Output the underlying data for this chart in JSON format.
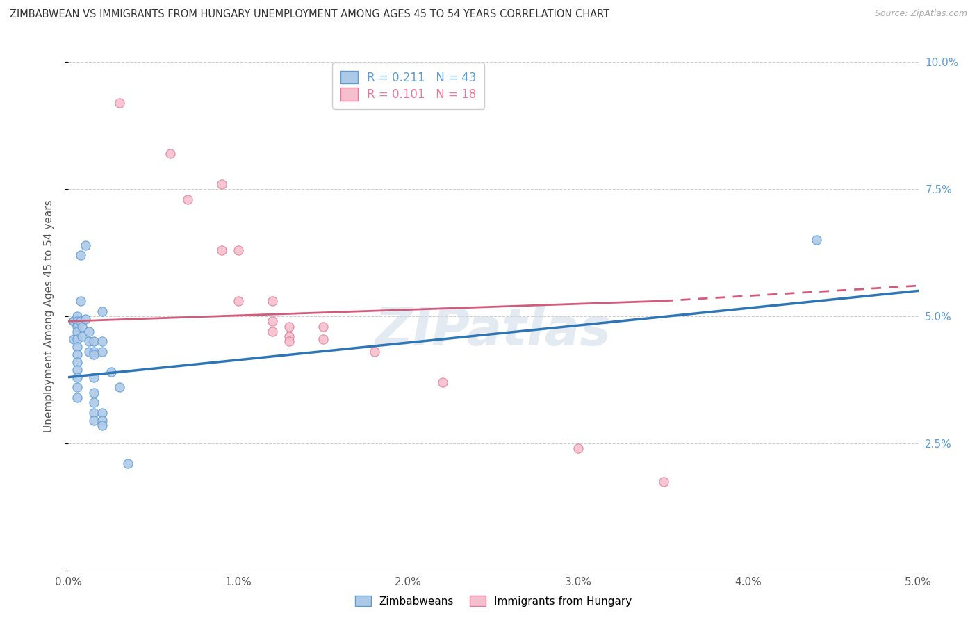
{
  "title": "ZIMBABWEAN VS IMMIGRANTS FROM HUNGARY UNEMPLOYMENT AMONG AGES 45 TO 54 YEARS CORRELATION CHART",
  "source": "Source: ZipAtlas.com",
  "ylabel": "Unemployment Among Ages 45 to 54 years",
  "xlim": [
    0.0,
    0.05
  ],
  "ylim": [
    0.0,
    0.1
  ],
  "x_ticks": [
    0.0,
    0.01,
    0.02,
    0.03,
    0.04,
    0.05
  ],
  "y_ticks": [
    0.0,
    0.025,
    0.05,
    0.075,
    0.1
  ],
  "y_tick_labels_right": [
    "",
    "2.5%",
    "5.0%",
    "7.5%",
    "10.0%"
  ],
  "blue_edge_color": "#5b9bd5",
  "pink_edge_color": "#e8789a",
  "blue_fill_color": "#adc9e8",
  "pink_fill_color": "#f5c0ce",
  "blue_line_color": "#2e75b6",
  "pink_line_color": "#d45a7a",
  "watermark": "ZIPatlas",
  "zimbabweans": [
    [
      0.0003,
      0.049
    ],
    [
      0.0003,
      0.0455
    ],
    [
      0.0003,
      0.049
    ],
    [
      0.0005,
      0.05
    ],
    [
      0.0005,
      0.049
    ],
    [
      0.0005,
      0.048
    ],
    [
      0.0005,
      0.047
    ],
    [
      0.0005,
      0.0455
    ],
    [
      0.0005,
      0.044
    ],
    [
      0.0005,
      0.0425
    ],
    [
      0.0005,
      0.041
    ],
    [
      0.0005,
      0.0395
    ],
    [
      0.0005,
      0.038
    ],
    [
      0.0005,
      0.036
    ],
    [
      0.0005,
      0.034
    ],
    [
      0.0007,
      0.062
    ],
    [
      0.0007,
      0.053
    ],
    [
      0.0007,
      0.049
    ],
    [
      0.0008,
      0.048
    ],
    [
      0.0008,
      0.046
    ],
    [
      0.001,
      0.064
    ],
    [
      0.001,
      0.0495
    ],
    [
      0.0012,
      0.047
    ],
    [
      0.0012,
      0.045
    ],
    [
      0.0012,
      0.043
    ],
    [
      0.0015,
      0.045
    ],
    [
      0.0015,
      0.043
    ],
    [
      0.0015,
      0.0425
    ],
    [
      0.0015,
      0.038
    ],
    [
      0.0015,
      0.035
    ],
    [
      0.0015,
      0.033
    ],
    [
      0.0015,
      0.031
    ],
    [
      0.0015,
      0.0295
    ],
    [
      0.002,
      0.051
    ],
    [
      0.002,
      0.045
    ],
    [
      0.002,
      0.043
    ],
    [
      0.002,
      0.031
    ],
    [
      0.002,
      0.0295
    ],
    [
      0.002,
      0.0285
    ],
    [
      0.0025,
      0.039
    ],
    [
      0.003,
      0.036
    ],
    [
      0.0035,
      0.021
    ],
    [
      0.044,
      0.065
    ]
  ],
  "hungary": [
    [
      0.003,
      0.092
    ],
    [
      0.006,
      0.082
    ],
    [
      0.007,
      0.073
    ],
    [
      0.009,
      0.076
    ],
    [
      0.009,
      0.063
    ],
    [
      0.01,
      0.063
    ],
    [
      0.01,
      0.053
    ],
    [
      0.012,
      0.053
    ],
    [
      0.012,
      0.049
    ],
    [
      0.012,
      0.047
    ],
    [
      0.013,
      0.048
    ],
    [
      0.013,
      0.046
    ],
    [
      0.013,
      0.045
    ],
    [
      0.015,
      0.048
    ],
    [
      0.015,
      0.0455
    ],
    [
      0.018,
      0.043
    ],
    [
      0.022,
      0.037
    ],
    [
      0.03,
      0.024
    ],
    [
      0.035,
      0.0175
    ]
  ],
  "blue_line_endpoints": [
    [
      0.0,
      0.038
    ],
    [
      0.05,
      0.055
    ]
  ],
  "pink_line_solid_endpoints": [
    [
      0.0,
      0.049
    ],
    [
      0.035,
      0.053
    ]
  ],
  "pink_line_dashed_endpoints": [
    [
      0.035,
      0.053
    ],
    [
      0.05,
      0.056
    ]
  ]
}
